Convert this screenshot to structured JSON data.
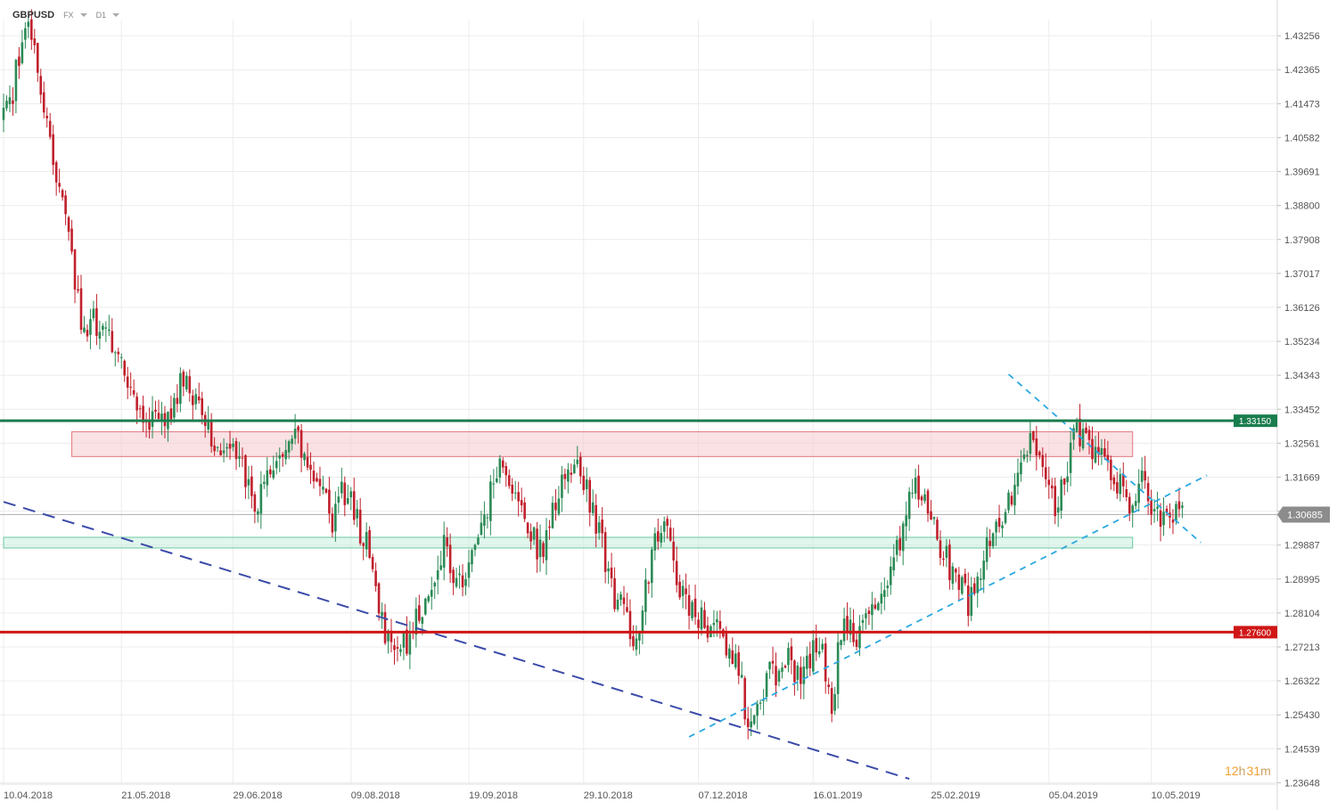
{
  "header": {
    "symbol": "GBPUSD",
    "market": "FX",
    "timeframe": "D1"
  },
  "timer": {
    "hours": "12",
    "hours_unit": "h",
    "minutes": "31",
    "minutes_unit": "m"
  },
  "colors": {
    "bull": "#2b8a55",
    "bear": "#c0202c",
    "resistance": "#1a7d4e",
    "support": "#d01616",
    "dashed_navy": "#3b4ba8",
    "dashed_cyan": "#2aa8e0",
    "zone_red": "#f6c9cc",
    "zone_green": "#c8eede"
  },
  "chart_data": {
    "type": "candlestick",
    "instrument": "GBPUSD",
    "timeframe": "D1",
    "y_axis_ticks": [
      1.43256,
      1.42365,
      1.41473,
      1.40582,
      1.39691,
      1.388,
      1.37908,
      1.37017,
      1.36126,
      1.35234,
      1.34343,
      1.33452,
      1.32561,
      1.31669,
      1.30778,
      1.29887,
      1.28995,
      1.28104,
      1.27213,
      1.26322,
      1.2543,
      1.24539,
      1.23648
    ],
    "ylim": [
      1.2361,
      1.4368
    ],
    "x_axis_labels": [
      "10.04.2018",
      "21.05.2018",
      "29.06.2018",
      "09.08.2018",
      "19.09.2018",
      "29.10.2018",
      "07.12.2018",
      "16.01.2019",
      "25.02.2019",
      "05.04.2019",
      "10.05.2019"
    ],
    "levels": [
      {
        "label": "1.33150",
        "price": 1.3315,
        "color": "#1a7d4e"
      },
      {
        "label": "1.27600",
        "price": 1.276,
        "color": "#d01616"
      }
    ],
    "last_price": {
      "label": "1.30685",
      "price": 1.30685
    },
    "zones": [
      {
        "name": "resistance-zone",
        "from_date": "29.04.2018",
        "to_date": "06.04.2019",
        "price_top": 1.3286,
        "price_bottom": 1.3221
      },
      {
        "name": "support-zone",
        "from_date": "10.04.2018",
        "to_date": "06.04.2019",
        "price_top": 1.3009,
        "price_bottom": 1.2981
      }
    ],
    "trendlines": [
      {
        "name": "long-term-downtrend",
        "style": "dashed",
        "color": "#3b4ba8",
        "points": [
          [
            0,
            1.3102
          ],
          [
            292,
            1.2375
          ]
        ]
      },
      {
        "name": "rising-support",
        "style": "dashed",
        "color": "#2aa8e0",
        "points": [
          [
            221,
            1.2485
          ],
          [
            388,
            1.3172
          ]
        ]
      },
      {
        "name": "falling-resistance",
        "style": "dashed",
        "color": "#2aa8e0",
        "points": [
          [
            324,
            1.3437
          ],
          [
            386,
            1.2995
          ]
        ]
      }
    ],
    "close_path": [
      [
        0,
        1.412
      ],
      [
        3,
        1.418
      ],
      [
        6,
        1.431
      ],
      [
        9,
        1.433
      ],
      [
        11,
        1.421
      ],
      [
        13,
        1.41
      ],
      [
        15,
        1.404
      ],
      [
        18,
        1.392
      ],
      [
        20,
        1.389
      ],
      [
        22,
        1.374
      ],
      [
        24,
        1.362
      ],
      [
        26,
        1.354
      ],
      [
        29,
        1.357
      ],
      [
        32,
        1.356
      ],
      [
        35,
        1.352
      ],
      [
        38,
        1.348
      ],
      [
        40,
        1.342
      ],
      [
        43,
        1.337
      ],
      [
        46,
        1.333
      ],
      [
        49,
        1.33
      ],
      [
        52,
        1.331
      ],
      [
        55,
        1.337
      ],
      [
        58,
        1.342
      ],
      [
        61,
        1.339
      ],
      [
        64,
        1.336
      ],
      [
        66,
        1.33
      ],
      [
        68,
        1.327
      ],
      [
        70,
        1.323
      ],
      [
        73,
        1.326
      ],
      [
        76,
        1.322
      ],
      [
        79,
        1.313
      ],
      [
        82,
        1.31
      ],
      [
        85,
        1.317
      ],
      [
        88,
        1.319
      ],
      [
        91,
        1.322
      ],
      [
        94,
        1.327
      ],
      [
        96,
        1.323
      ],
      [
        99,
        1.321
      ],
      [
        101,
        1.316
      ],
      [
        103,
        1.311
      ],
      [
        106,
        1.306
      ],
      [
        108,
        1.313
      ],
      [
        111,
        1.311
      ],
      [
        114,
        1.305
      ],
      [
        117,
        1.299
      ],
      [
        119,
        1.29
      ],
      [
        121,
        1.283
      ],
      [
        123,
        1.277
      ],
      [
        126,
        1.274
      ],
      [
        129,
        1.272
      ],
      [
        131,
        1.275
      ],
      [
        133,
        1.279
      ],
      [
        136,
        1.285
      ],
      [
        139,
        1.292
      ],
      [
        142,
        1.3
      ],
      [
        144,
        1.294
      ],
      [
        147,
        1.288
      ],
      [
        150,
        1.292
      ],
      [
        152,
        1.301
      ],
      [
        155,
        1.305
      ],
      [
        157,
        1.313
      ],
      [
        160,
        1.321
      ],
      [
        162,
        1.318
      ],
      [
        165,
        1.311
      ],
      [
        167,
        1.306
      ],
      [
        170,
        1.303
      ],
      [
        173,
        1.297
      ],
      [
        175,
        1.301
      ],
      [
        178,
        1.309
      ],
      [
        181,
        1.316
      ],
      [
        184,
        1.321
      ],
      [
        186,
        1.318
      ],
      [
        189,
        1.311
      ],
      [
        192,
        1.301
      ],
      [
        195,
        1.293
      ],
      [
        197,
        1.285
      ],
      [
        200,
        1.281
      ],
      [
        203,
        1.274
      ],
      [
        206,
        1.282
      ],
      [
        208,
        1.292
      ],
      [
        211,
        1.301
      ],
      [
        213,
        1.306
      ],
      [
        215,
        1.298
      ],
      [
        218,
        1.288
      ],
      [
        221,
        1.281
      ],
      [
        223,
        1.282
      ],
      [
        226,
        1.278
      ],
      [
        229,
        1.276
      ],
      [
        232,
        1.275
      ],
      [
        234,
        1.27
      ],
      [
        237,
        1.266
      ],
      [
        239,
        1.256
      ],
      [
        242,
        1.252
      ],
      [
        245,
        1.262
      ],
      [
        247,
        1.266
      ],
      [
        250,
        1.266
      ],
      [
        253,
        1.268
      ],
      [
        256,
        1.265
      ],
      [
        258,
        1.267
      ],
      [
        261,
        1.272
      ],
      [
        264,
        1.272
      ],
      [
        267,
        1.255
      ],
      [
        269,
        1.272
      ],
      [
        272,
        1.279
      ],
      [
        275,
        1.276
      ],
      [
        277,
        1.277
      ],
      [
        280,
        1.281
      ],
      [
        283,
        1.287
      ],
      [
        285,
        1.291
      ],
      [
        288,
        1.298
      ],
      [
        291,
        1.307
      ],
      [
        294,
        1.314
      ],
      [
        297,
        1.312
      ],
      [
        299,
        1.306
      ],
      [
        301,
        1.301
      ],
      [
        304,
        1.296
      ],
      [
        306,
        1.291
      ],
      [
        309,
        1.287
      ],
      [
        311,
        1.283
      ],
      [
        314,
        1.289
      ],
      [
        317,
        1.297
      ],
      [
        319,
        1.302
      ],
      [
        322,
        1.305
      ],
      [
        325,
        1.312
      ],
      [
        327,
        1.318
      ],
      [
        329,
        1.322
      ],
      [
        331,
        1.325
      ],
      [
        334,
        1.324
      ],
      [
        337,
        1.317
      ],
      [
        339,
        1.309
      ],
      [
        342,
        1.318
      ],
      [
        345,
        1.326
      ],
      [
        348,
        1.33
      ],
      [
        350,
        1.326
      ],
      [
        353,
        1.321
      ],
      [
        355,
        1.324
      ],
      [
        358,
        1.317
      ],
      [
        361,
        1.312
      ],
      [
        364,
        1.306
      ],
      [
        366,
        1.313
      ],
      [
        368,
        1.317
      ],
      [
        370,
        1.309
      ],
      [
        372,
        1.305
      ],
      [
        375,
        1.306
      ],
      [
        378,
        1.308
      ],
      [
        380,
        1.306
      ]
    ]
  }
}
